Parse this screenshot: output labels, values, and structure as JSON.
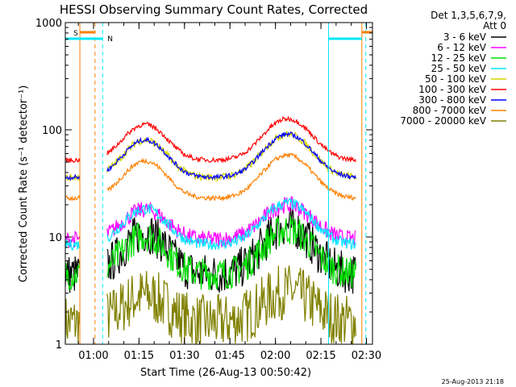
{
  "chart_data": {
    "type": "line",
    "title": "HESSI Observing Summary Count Rates, Corrected",
    "xlabel": "Start Time (26-Aug-13 00:50:42)",
    "ylabel": "Corrected Count Rate (s⁻¹ detector⁻¹)",
    "yscale": "log",
    "ylim": [
      1,
      1000
    ],
    "xlim_minutes": [
      50.7,
      152.0
    ],
    "x_ticks": [
      "01:00",
      "01:15",
      "01:30",
      "01:45",
      "02:00",
      "02:15",
      "02:30"
    ],
    "y_ticks": [
      "1",
      "10",
      "100",
      "1000"
    ],
    "legend_header": [
      "Det 1,3,5,6,7,9,",
      "Att 0"
    ],
    "legend_position": "right",
    "series": [
      {
        "name": "3 - 6 keV",
        "color": "#000000"
      },
      {
        "name": "6 - 12 keV",
        "color": "#ff00ff"
      },
      {
        "name": "12 - 25 keV",
        "color": "#00e000"
      },
      {
        "name": "25 - 50 keV",
        "color": "#00e8ff"
      },
      {
        "name": "50 - 100 keV",
        "color": "#d4d400"
      },
      {
        "name": "100 - 300 keV",
        "color": "#ff0000"
      },
      {
        "name": "300 - 800 keV",
        "color": "#0000ff"
      },
      {
        "name": "800 - 7000 keV",
        "color": "#ff8000"
      },
      {
        "name": "7000 - 20000 keV",
        "color": "#808000"
      }
    ],
    "bands": [
      {
        "label": "S",
        "color": "#ff8000",
        "level": 1.05
      },
      {
        "label": "N",
        "color": "#00e8ff",
        "level": 1.0
      }
    ],
    "timestamp": "25-Aug-2013 21:18"
  }
}
